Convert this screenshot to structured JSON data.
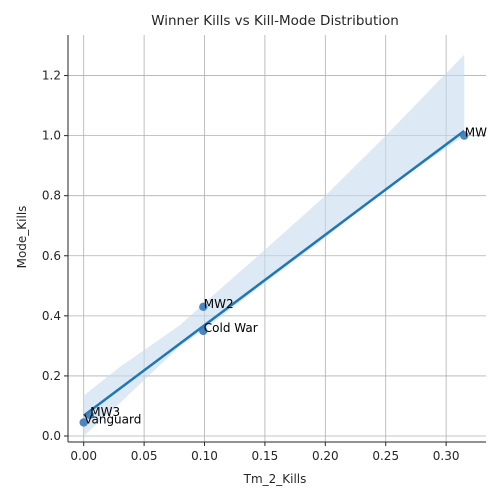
{
  "chart_data": {
    "type": "scatter",
    "title": "Winner Kills vs Kill-Mode Distribution",
    "xlabel": "Tm_2_Kills",
    "ylabel": "Mode_Kills",
    "xlim": [
      -0.013,
      0.333
    ],
    "ylim": [
      -0.02,
      1.335
    ],
    "x_ticks": [
      0.0,
      0.05,
      0.1,
      0.15,
      0.2,
      0.25,
      0.3
    ],
    "x_tick_labels": [
      "0.00",
      "0.05",
      "0.10",
      "0.15",
      "0.20",
      "0.25",
      "0.30"
    ],
    "y_ticks": [
      0.0,
      0.2,
      0.4,
      0.6,
      0.8,
      1.0,
      1.2
    ],
    "y_tick_labels": [
      "0.0",
      "0.2",
      "0.4",
      "0.6",
      "0.8",
      "1.0",
      "1.2"
    ],
    "grid": true,
    "points": [
      {
        "label": "MW",
        "x": 0.315,
        "y": 1.0
      },
      {
        "label": "MW2",
        "x": 0.099,
        "y": 0.43
      },
      {
        "label": "Cold War",
        "x": 0.099,
        "y": 0.35
      },
      {
        "label": "MW3",
        "x": 0.005,
        "y": 0.07
      },
      {
        "label": "Vanguard",
        "x": 0.0,
        "y": 0.045
      }
    ],
    "regression": {
      "x": [
        0.0,
        0.315
      ],
      "y": [
        0.068,
        1.016
      ]
    },
    "confidence_band": {
      "x": [
        0.0,
        0.03,
        0.08,
        0.099,
        0.15,
        0.2,
        0.25,
        0.315
      ],
      "upper": [
        0.135,
        0.23,
        0.37,
        0.44,
        0.62,
        0.8,
        1.0,
        1.27
      ],
      "lower": [
        0.0,
        0.11,
        0.3,
        0.352,
        0.51,
        0.66,
        0.82,
        1.0
      ]
    },
    "colors": {
      "point": "#3a7ab5",
      "line": "#1f77b4",
      "band": "#c6dbef",
      "grid": "#b0b0b0",
      "axis": "#262626"
    }
  }
}
